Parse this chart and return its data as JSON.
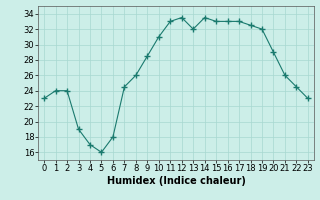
{
  "x": [
    0,
    1,
    2,
    3,
    4,
    5,
    6,
    7,
    8,
    9,
    10,
    11,
    12,
    13,
    14,
    15,
    16,
    17,
    18,
    19,
    20,
    21,
    22,
    23
  ],
  "y": [
    23,
    24,
    24,
    19,
    17,
    16,
    18,
    24.5,
    26,
    28.5,
    31,
    33,
    33.5,
    32,
    33.5,
    33,
    33,
    33,
    32.5,
    32,
    29,
    26,
    24.5,
    23
  ],
  "line_color": "#1a7a6e",
  "marker_color": "#1a7a6e",
  "bg_color": "#cceee8",
  "grid_color": "#a8d8d0",
  "xlabel": "Humidex (Indice chaleur)",
  "xlim": [
    -0.5,
    23.5
  ],
  "ylim": [
    15,
    35
  ],
  "yticks": [
    16,
    18,
    20,
    22,
    24,
    26,
    28,
    30,
    32,
    34
  ],
  "xticks": [
    0,
    1,
    2,
    3,
    4,
    5,
    6,
    7,
    8,
    9,
    10,
    11,
    12,
    13,
    14,
    15,
    16,
    17,
    18,
    19,
    20,
    21,
    22,
    23
  ],
  "label_fontsize": 7,
  "tick_fontsize": 6
}
